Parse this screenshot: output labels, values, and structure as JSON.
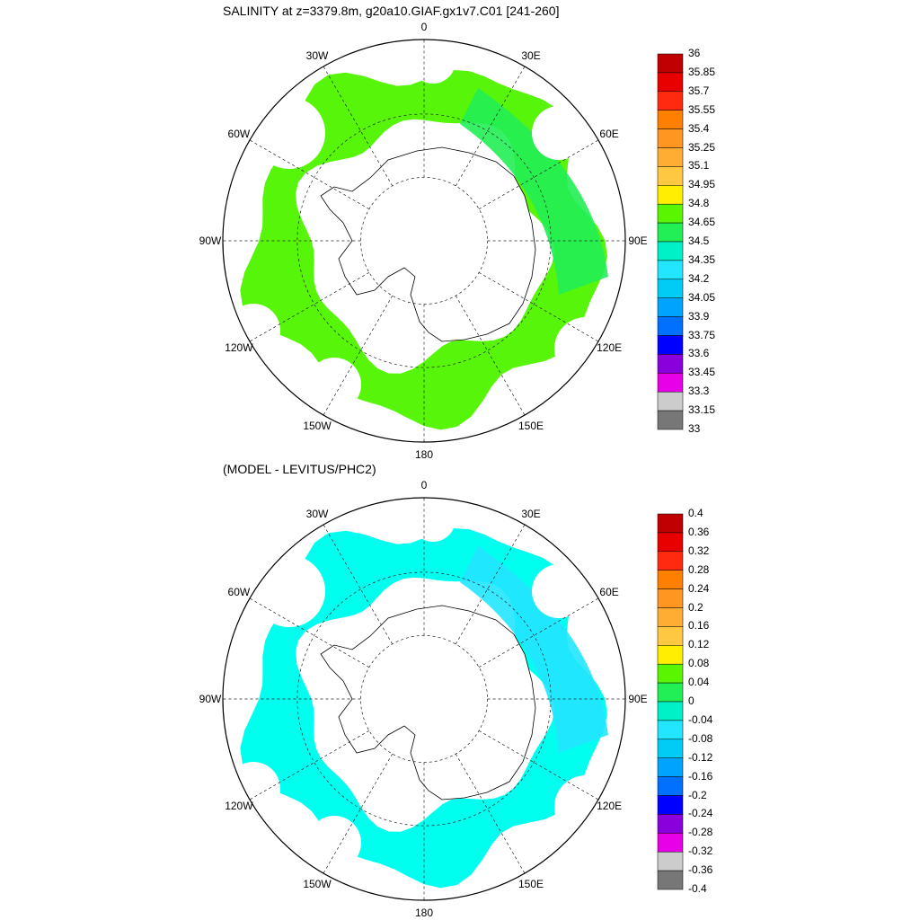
{
  "panels": [
    {
      "title": "SALINITY at z=3379.8m, g20a10.GIAF.gx1v7.C01 [241-260]",
      "field_color": "#57f50a",
      "field_color2": "#22ee55",
      "colorbar": {
        "labels": [
          "36",
          "35.85",
          "35.7",
          "35.55",
          "35.4",
          "35.25",
          "35.1",
          "34.95",
          "34.8",
          "34.65",
          "34.5",
          "34.35",
          "34.2",
          "34.05",
          "33.9",
          "33.75",
          "33.6",
          "33.45",
          "33.3",
          "33.15",
          "33"
        ],
        "colors": [
          "#c00000",
          "#e80000",
          "#ff2a10",
          "#ff8000",
          "#ff9622",
          "#ffae33",
          "#ffc840",
          "#ffee00",
          "#5af500",
          "#22ee55",
          "#00f0c8",
          "#22e5ff",
          "#00ccf5",
          "#00a4ff",
          "#0070ff",
          "#0000ff",
          "#8a00dd",
          "#e800e8",
          "#cccccc",
          "#777777"
        ]
      }
    },
    {
      "title": "(MODEL - LEVITUS/PHC2)",
      "field_color": "#00ffee",
      "field_color2": "#22e5ff",
      "colorbar": {
        "labels": [
          "0.4",
          "0.36",
          "0.32",
          "0.28",
          "0.24",
          "0.2",
          "0.16",
          "0.12",
          "0.08",
          "0.04",
          "0",
          "-0.04",
          "-0.08",
          "-0.12",
          "-0.16",
          "-0.2",
          "-0.24",
          "-0.28",
          "-0.32",
          "-0.36",
          "-0.4"
        ],
        "colors": [
          "#c00000",
          "#e80000",
          "#ff2a10",
          "#ff8000",
          "#ff9622",
          "#ffae33",
          "#ffc840",
          "#ffee00",
          "#5af500",
          "#22ee55",
          "#00f0c8",
          "#22e5ff",
          "#00ccf5",
          "#00a4ff",
          "#0070ff",
          "#0000ff",
          "#8a00dd",
          "#e800e8",
          "#cccccc",
          "#777777"
        ]
      }
    }
  ],
  "lon_labels": [
    "0",
    "30E",
    "60E",
    "90E",
    "120E",
    "150E",
    "180",
    "150W",
    "120W",
    "90W",
    "60W",
    "30W"
  ]
}
